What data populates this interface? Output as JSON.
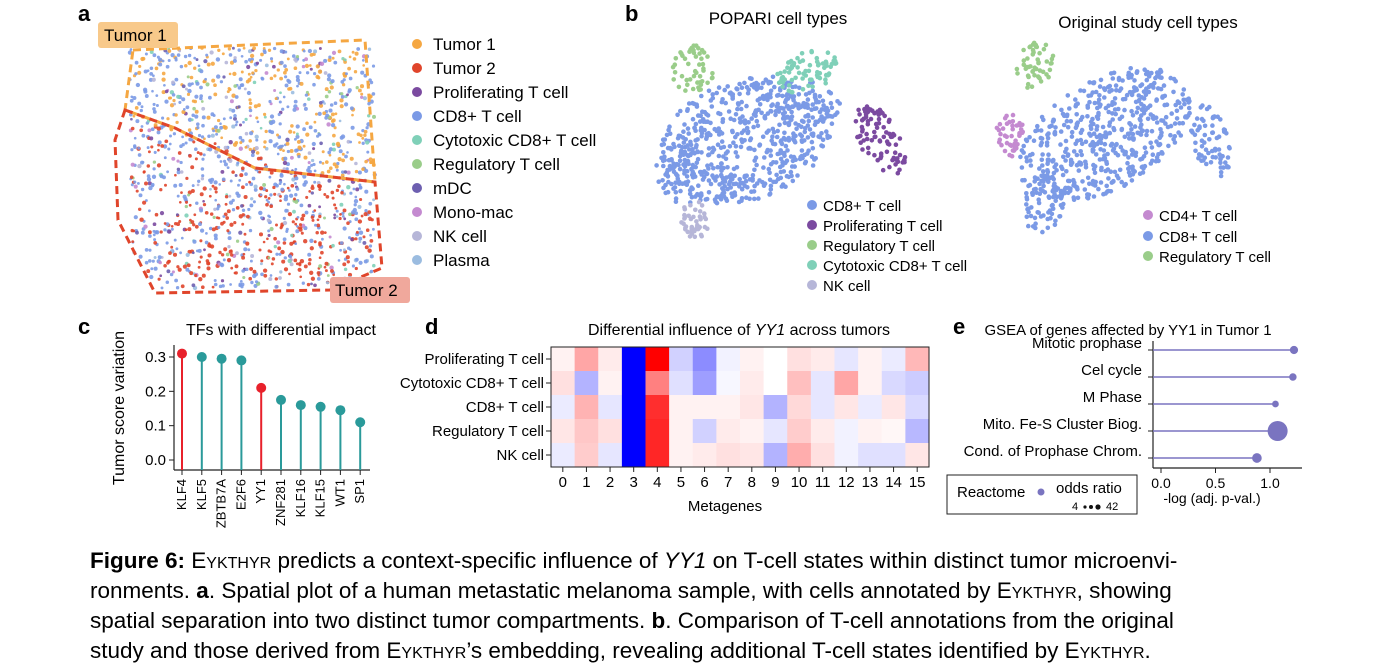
{
  "panel_labels": {
    "a": "a",
    "b": "b",
    "c": "c",
    "d": "d",
    "e": "e"
  },
  "panel_a": {
    "region_labels": {
      "tumor1": "Tumor 1",
      "tumor2": "Tumor 2"
    },
    "legend": [
      {
        "label": "Tumor 1",
        "color": "#f5a742"
      },
      {
        "label": "Tumor 2",
        "color": "#e0452b"
      },
      {
        "label": "Proliferating T cell",
        "color": "#7b4aa0"
      },
      {
        "label": "CD8+ T cell",
        "color": "#7b9ae6"
      },
      {
        "label": "Cytotoxic CD8+ T cell",
        "color": "#7fd0b8"
      },
      {
        "label": "Regulatory T cell",
        "color": "#9acd8a"
      },
      {
        "label": "mDC",
        "color": "#6d5fb0"
      },
      {
        "label": "Mono-mac",
        "color": "#c48ad0"
      },
      {
        "label": "NK cell",
        "color": "#b6b6d8"
      },
      {
        "label": "Plasma",
        "color": "#9bbce0"
      }
    ]
  },
  "panel_b": {
    "left_title": "POPARI cell types",
    "right_title": "Original study cell types",
    "left_legend": [
      {
        "label": "CD8+ T cell",
        "color": "#7b9ae6"
      },
      {
        "label": "Proliferating T cell",
        "color": "#7b4aa0"
      },
      {
        "label": "Regulatory T cell",
        "color": "#9acd8a"
      },
      {
        "label": "Cytotoxic CD8+ T cell",
        "color": "#7fd0b8"
      },
      {
        "label": "NK cell",
        "color": "#b6b6d8"
      }
    ],
    "right_legend": [
      {
        "label": "CD4+ T cell",
        "color": "#c48ad0"
      },
      {
        "label": "CD8+ T cell",
        "color": "#7b9ae6"
      },
      {
        "label": "Regulatory T cell",
        "color": "#9acd8a"
      }
    ]
  },
  "panel_e_legend": {
    "source": "Reactome",
    "size_title": "odds ratio",
    "size_min": "4",
    "size_max": "42"
  },
  "chart_data": [
    {
      "type": "scatter",
      "title": "TFs with differential impact",
      "ylabel": "Tumor score variation",
      "xlabel": "",
      "categories": [
        "KLF4",
        "KLF5",
        "ZBTB7A",
        "E2F6",
        "YY1",
        "ZNF281",
        "KLF16",
        "KLF15",
        "WT1",
        "SP1"
      ],
      "values": [
        0.31,
        0.3,
        0.295,
        0.29,
        0.21,
        0.175,
        0.16,
        0.155,
        0.145,
        0.11
      ],
      "highlight": [
        "KLF4",
        "YY1"
      ],
      "colors": {
        "highlight": "#e8212b",
        "default": "#2a9a9a"
      },
      "yticks": [
        "0.0",
        "0.1",
        "0.2",
        "0.3"
      ],
      "ylim": [
        0,
        0.32
      ]
    },
    {
      "type": "heatmap",
      "title": "Differential influence of YY1 across tumors",
      "title_prefix": "Differential influence of ",
      "title_gene": "YY1",
      "title_suffix": " across tumors",
      "xlabel": "Metagenes",
      "rows": [
        "Proliferating T cell",
        "Cytotoxic CD8+ T cell",
        "CD8+ T cell",
        "Regulatory T cell",
        "NK cell"
      ],
      "columns": [
        "0",
        "1",
        "2",
        "3",
        "4",
        "5",
        "6",
        "7",
        "8",
        "9",
        "10",
        "11",
        "12",
        "13",
        "14",
        "15"
      ],
      "values": [
        [
          0.05,
          0.35,
          0.08,
          -1.0,
          1.0,
          -0.18,
          -0.45,
          -0.05,
          0.05,
          0.0,
          0.12,
          0.08,
          -0.1,
          0.05,
          -0.08,
          0.28
        ],
        [
          0.12,
          -0.3,
          0.05,
          -1.0,
          0.5,
          -0.12,
          -0.38,
          -0.03,
          0.08,
          0.0,
          0.25,
          -0.1,
          0.35,
          0.05,
          -0.15,
          -0.2
        ],
        [
          -0.08,
          0.3,
          -0.1,
          -1.0,
          0.82,
          0.05,
          0.05,
          0.05,
          0.1,
          -0.3,
          0.15,
          -0.1,
          0.1,
          -0.08,
          0.1,
          -0.15
        ],
        [
          0.1,
          0.22,
          0.12,
          -1.0,
          0.85,
          0.05,
          -0.18,
          0.08,
          0.05,
          -0.1,
          0.2,
          0.08,
          -0.05,
          0.05,
          0.03,
          -0.28
        ],
        [
          -0.08,
          0.2,
          -0.1,
          -1.0,
          0.85,
          0.05,
          0.08,
          0.12,
          0.1,
          -0.3,
          0.32,
          0.12,
          -0.05,
          -0.12,
          -0.12,
          0.1
        ]
      ],
      "colormap": "bwr"
    },
    {
      "type": "scatter",
      "title": "GSEA of genes affected by YY1 in Tumor 1",
      "xlabel": "-log (adj. p-val.)",
      "categories": [
        "Mitotic prophase",
        "Cel cycle",
        "M Phase",
        "Mito. Fe-S Cluster Biog.",
        "Cond. of Prophase Chrom."
      ],
      "values": [
        1.22,
        1.21,
        1.05,
        1.07,
        0.88
      ],
      "odds_ratio": [
        10,
        8,
        6,
        42,
        14
      ],
      "xticks": [
        "0.0",
        "0.5",
        "1.0"
      ],
      "xlim": [
        0,
        1.28
      ],
      "color": "#7a74c0"
    }
  ]
}
